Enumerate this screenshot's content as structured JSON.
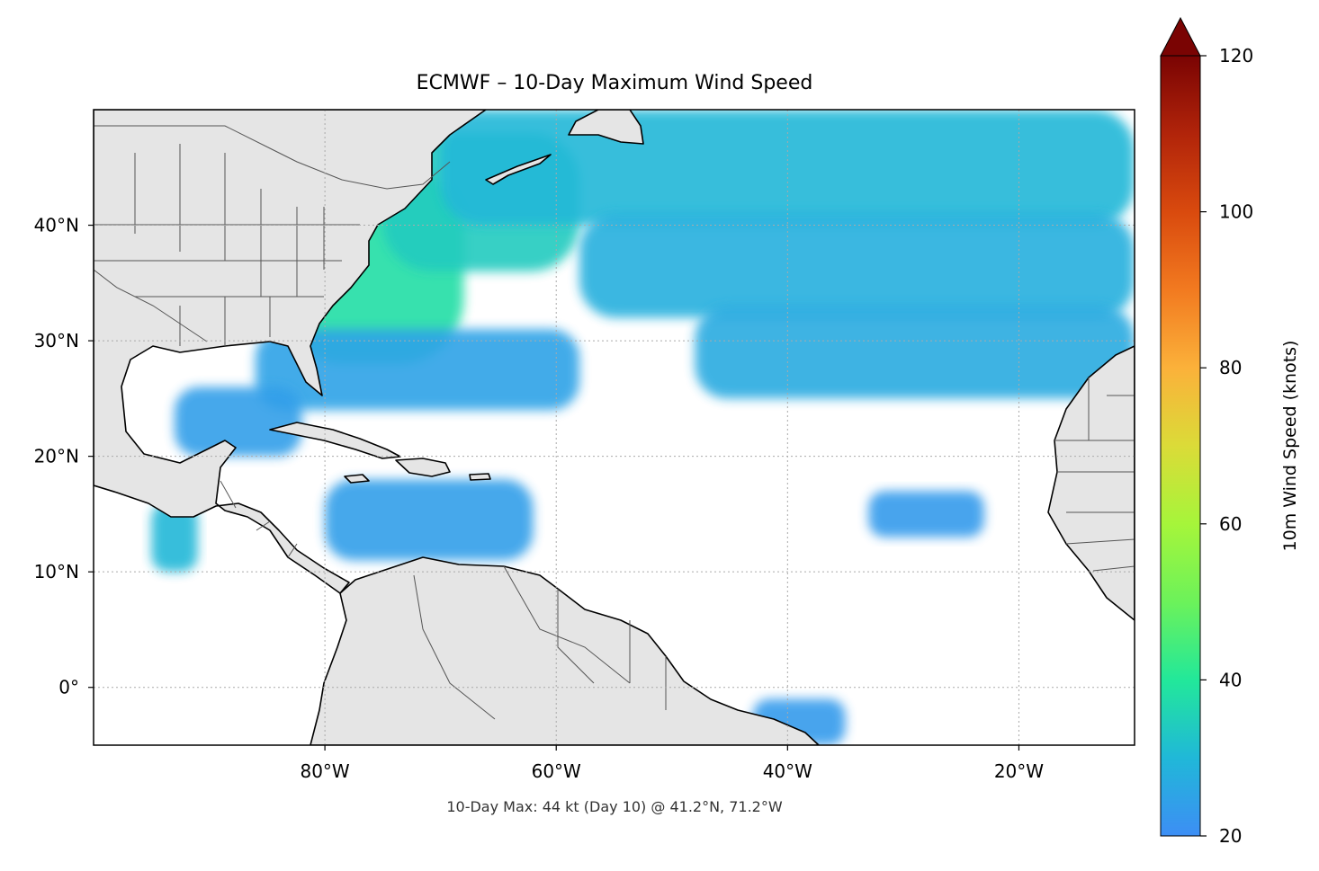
{
  "title": "ECMWF – 10-Day Maximum Wind Speed",
  "footnote": "10-Day Max: 44 kt (Day 10) @ 41.2°N, 71.2°W",
  "map": {
    "lon_range": [
      -100,
      -10
    ],
    "lat_range": [
      -5,
      50
    ],
    "lon_ticks": [
      {
        "value": -80,
        "label": "80°W"
      },
      {
        "value": -60,
        "label": "60°W"
      },
      {
        "value": -40,
        "label": "40°W"
      },
      {
        "value": -20,
        "label": "20°W"
      }
    ],
    "lat_ticks": [
      {
        "value": 40,
        "label": "40°N"
      },
      {
        "value": 30,
        "label": "30°N"
      },
      {
        "value": 20,
        "label": "20°N"
      },
      {
        "value": 10,
        "label": "10°N"
      },
      {
        "value": 0,
        "label": "0°"
      }
    ],
    "gridlines": true,
    "land_color": "#e5e5e5",
    "ocean_color": "#ffffff"
  },
  "colorbar": {
    "label": "10m Wind Speed (knots)",
    "min": 20,
    "max": 120,
    "extend": "max",
    "ticks": [
      {
        "value": 120,
        "label": "120"
      },
      {
        "value": 100,
        "label": "100"
      },
      {
        "value": 80,
        "label": "80"
      },
      {
        "value": 60,
        "label": "60"
      },
      {
        "value": 40,
        "label": "40"
      },
      {
        "value": 20,
        "label": "20"
      }
    ],
    "colors": [
      "#3d8ef5",
      "#20b8d8",
      "#22e89a",
      "#6cf25a",
      "#a6f53a",
      "#dbdb38",
      "#fbb13a",
      "#f27a20",
      "#d94a0e",
      "#b1240a",
      "#7a0403"
    ]
  },
  "chart_data": {
    "type": "heatmap",
    "title": "ECMWF – 10-Day Maximum Wind Speed",
    "variable": "10m Wind Speed (knots)",
    "scale_range": [
      20,
      120
    ],
    "maximum": {
      "value_kt": 44,
      "day": 10,
      "lat": 41.2,
      "lon": -71.2
    },
    "regions": [
      {
        "lon": [
          -84,
          -68
        ],
        "lat": [
          28,
          45
        ],
        "value": 38
      },
      {
        "lon": [
          -75,
          -58
        ],
        "lat": [
          36,
          48
        ],
        "value": 34
      },
      {
        "lon": [
          -70,
          -10
        ],
        "lat": [
          40,
          50
        ],
        "value": 30
      },
      {
        "lon": [
          -58,
          -10
        ],
        "lat": [
          32,
          41
        ],
        "value": 28
      },
      {
        "lon": [
          -48,
          -10
        ],
        "lat": [
          25,
          33
        ],
        "value": 27
      },
      {
        "lon": [
          -86,
          -58
        ],
        "lat": [
          24,
          31
        ],
        "value": 25
      },
      {
        "lon": [
          -93,
          -82
        ],
        "lat": [
          20,
          26
        ],
        "value": 24
      },
      {
        "lon": [
          -80,
          -62
        ],
        "lat": [
          11,
          18
        ],
        "value": 24
      },
      {
        "lon": [
          -95,
          -91
        ],
        "lat": [
          10,
          16
        ],
        "value": 30
      },
      {
        "lon": [
          -33,
          -23
        ],
        "lat": [
          13,
          17
        ],
        "value": 23
      },
      {
        "lon": [
          -43,
          -35
        ],
        "lat": [
          -5,
          -1
        ],
        "value": 23
      }
    ]
  }
}
